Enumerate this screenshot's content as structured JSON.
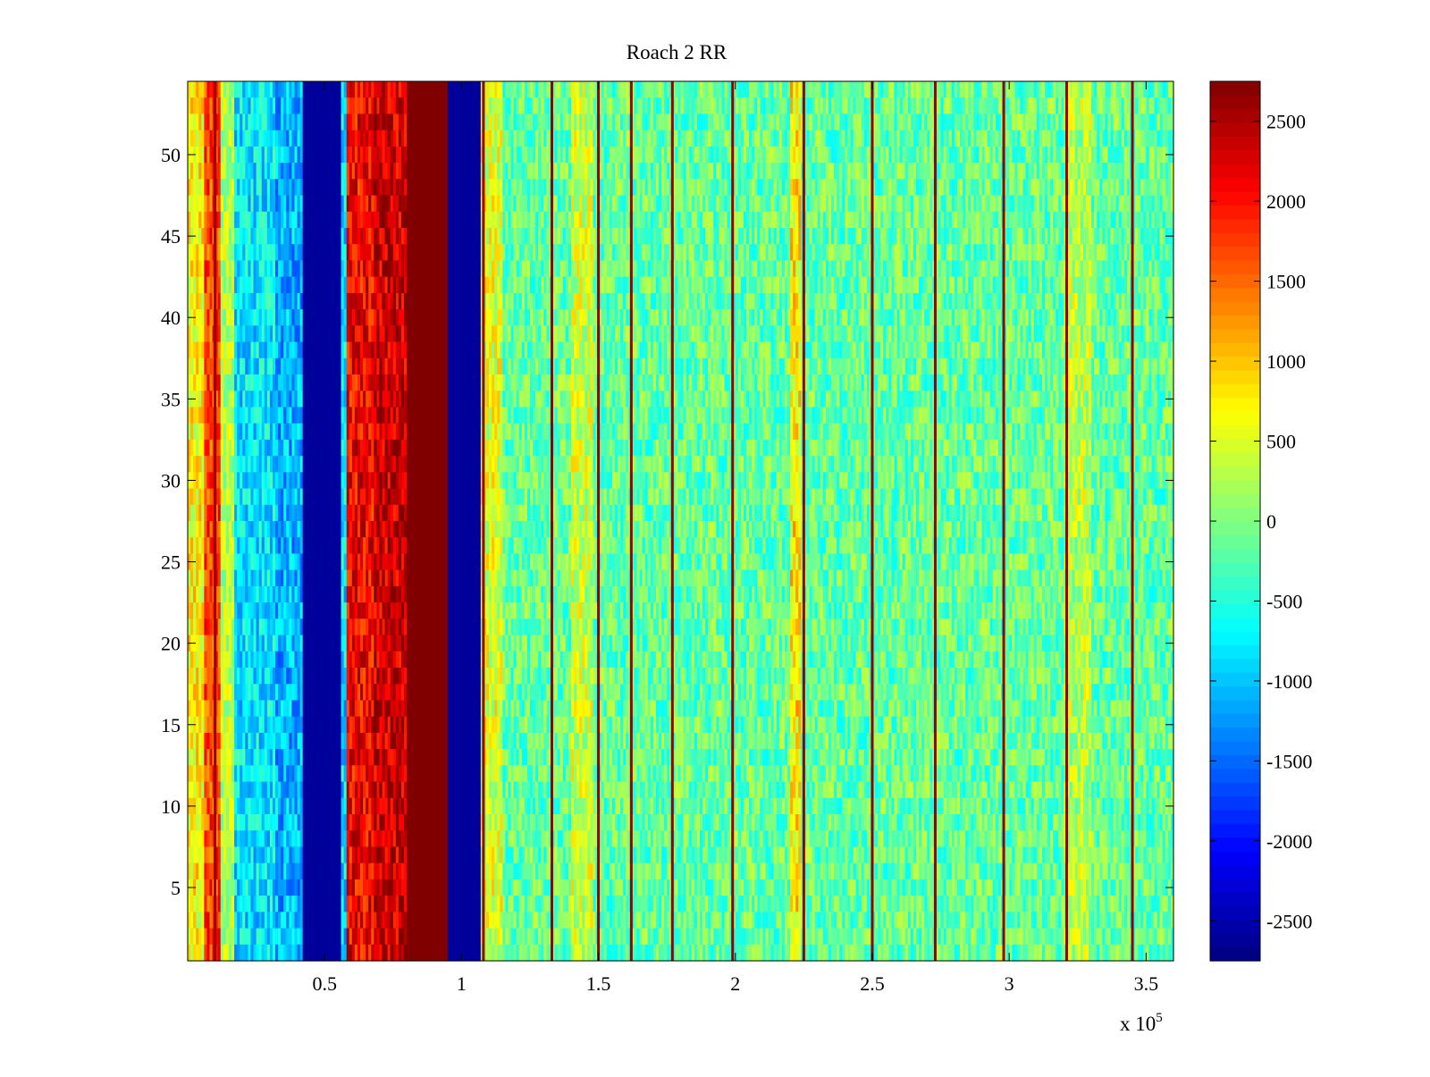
{
  "chart_data": {
    "type": "heatmap",
    "title": "Roach 2 RR",
    "xlabel": "",
    "ylabel": "",
    "x_exponent_label": "x 10",
    "x_exponent_power": "5",
    "xlim": [
      0,
      3.6
    ],
    "ylim": [
      0.5,
      54.5
    ],
    "rows": 54,
    "x_ticks": [
      0.5,
      1,
      1.5,
      2,
      2.5,
      3,
      3.5
    ],
    "x_tick_labels": [
      "0.5",
      "1",
      "1.5",
      "2",
      "2.5",
      "3",
      "3.5"
    ],
    "y_ticks": [
      5,
      10,
      15,
      20,
      25,
      30,
      35,
      40,
      45,
      50
    ],
    "y_tick_labels": [
      "5",
      "10",
      "15",
      "20",
      "25",
      "30",
      "35",
      "40",
      "45",
      "50"
    ],
    "colormap": "jet",
    "clim": [
      -2750,
      2750
    ],
    "colorbar_ticks": [
      2500,
      2000,
      1500,
      1000,
      500,
      0,
      -500,
      -1000,
      -1500,
      -2000,
      -2500
    ],
    "colorbar_tick_labels": [
      "2500",
      "2000",
      "1500",
      "1000",
      "500",
      "0",
      "-500",
      "-1000",
      "-1500",
      "-2000",
      "-2500"
    ],
    "background_level": -150,
    "noise_amplitude": 550,
    "bands": [
      {
        "x_start": 0.0,
        "x_end": 0.06,
        "level": 700
      },
      {
        "x_start": 0.06,
        "x_end": 0.12,
        "level": 1700
      },
      {
        "x_start": 0.12,
        "x_end": 0.17,
        "level": 300
      },
      {
        "x_start": 0.17,
        "x_end": 0.32,
        "level": -800
      },
      {
        "x_start": 0.32,
        "x_end": 0.42,
        "level": -1100
      },
      {
        "x_start": 0.42,
        "x_end": 0.56,
        "level": -2600
      },
      {
        "x_start": 0.56,
        "x_end": 0.58,
        "level": -900
      },
      {
        "x_start": 0.58,
        "x_end": 0.68,
        "level": 2100
      },
      {
        "x_start": 0.68,
        "x_end": 0.8,
        "level": 2350
      },
      {
        "x_start": 0.8,
        "x_end": 0.95,
        "level": 2750
      },
      {
        "x_start": 0.95,
        "x_end": 1.07,
        "level": -2600
      },
      {
        "x_start": 1.07,
        "x_end": 1.15,
        "level": 500
      },
      {
        "x_start": 1.4,
        "x_end": 1.48,
        "level": 400
      },
      {
        "x_start": 2.2,
        "x_end": 2.24,
        "level": 800
      },
      {
        "x_start": 3.2,
        "x_end": 3.3,
        "level": 300
      }
    ],
    "stripes": [
      0.1,
      1.08,
      1.33,
      1.5,
      1.62,
      1.77,
      1.99,
      2.25,
      2.5,
      2.73,
      2.98,
      3.21,
      3.45
    ],
    "stripe_level": 2600
  }
}
